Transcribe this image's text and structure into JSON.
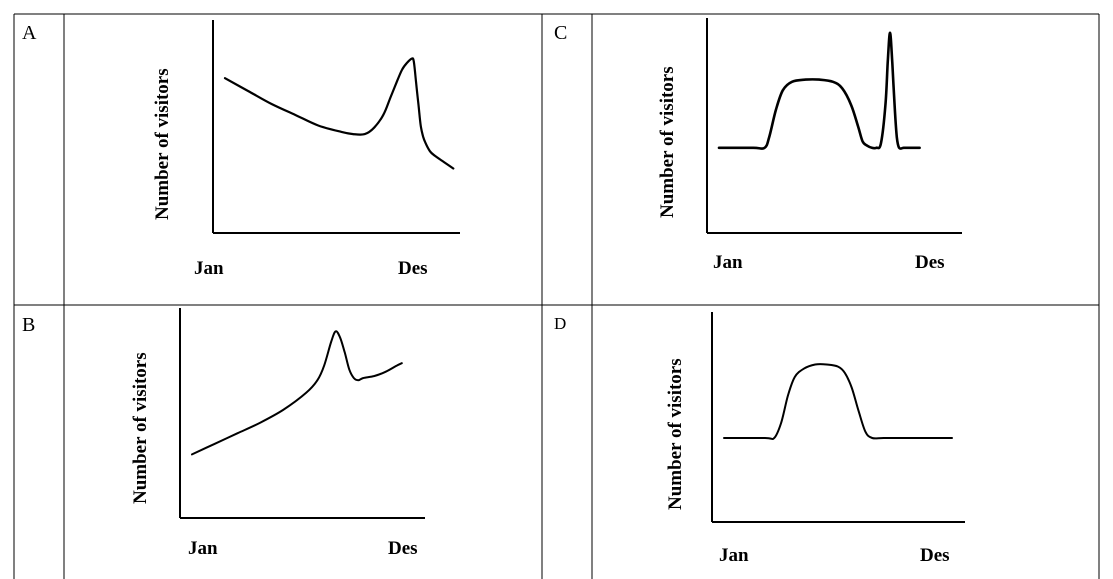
{
  "colors": {
    "line": "#000000",
    "border": "#000000"
  },
  "chart_data": [
    {
      "id": "A",
      "type": "line",
      "letter": "A",
      "ylabel": "Number of visitors",
      "x_ticks": [
        "Jan",
        "Des"
      ],
      "xlim": [
        0,
        100
      ],
      "ylim": [
        0,
        100
      ],
      "grid": false,
      "x": [
        0,
        10,
        20,
        30,
        40,
        50,
        55,
        60,
        64,
        68,
        71,
        74,
        76,
        78,
        80,
        81,
        82,
        83,
        84,
        85,
        86,
        88,
        90,
        94,
        98
      ],
      "y": [
        72,
        66,
        60,
        55,
        50,
        47,
        46,
        46,
        49,
        55,
        63,
        71,
        76,
        79,
        81,
        80,
        70,
        60,
        50,
        45,
        42,
        38,
        36,
        33,
        30
      ]
    },
    {
      "id": "C",
      "type": "line",
      "letter": "C",
      "ylabel": "Number of visitors",
      "x_ticks": [
        "Jan",
        "Des"
      ],
      "xlim": [
        0,
        100
      ],
      "ylim": [
        0,
        100
      ],
      "grid": false,
      "x": [
        0,
        15,
        20,
        22,
        25,
        28,
        32,
        38,
        44,
        50,
        54,
        58,
        61,
        63,
        65,
        67,
        69,
        71,
        73,
        74,
        75,
        76,
        77,
        78,
        79,
        81,
        83,
        88
      ],
      "y": [
        40,
        40,
        40,
        45,
        58,
        67,
        71,
        72,
        72,
        71,
        68,
        60,
        50,
        43,
        41,
        40,
        40,
        42,
        60,
        80,
        94,
        80,
        60,
        45,
        40,
        40,
        40,
        40
      ]
    },
    {
      "id": "B",
      "type": "line",
      "letter": "B",
      "ylabel": "Number of visitors",
      "x_ticks": [
        "Jan",
        "Des"
      ],
      "xlim": [
        0,
        100
      ],
      "ylim": [
        0,
        100
      ],
      "grid": false,
      "x": [
        0,
        10,
        20,
        30,
        40,
        50,
        55,
        58,
        61,
        63,
        65,
        67,
        69,
        71,
        73,
        75,
        80,
        85,
        90,
        92
      ],
      "y": [
        30,
        35,
        40,
        45,
        51,
        59,
        65,
        72,
        83,
        88,
        85,
        78,
        70,
        66,
        65,
        66,
        67,
        69,
        72,
        73
      ]
    },
    {
      "id": "D",
      "type": "line",
      "letter": "D",
      "ylabel": "Number of visitors",
      "x_ticks": [
        "Jan",
        "Des"
      ],
      "xlim": [
        0,
        100
      ],
      "ylim": [
        0,
        100
      ],
      "grid": false,
      "x": [
        0,
        18,
        22,
        25,
        28,
        31,
        35,
        40,
        45,
        50,
        53,
        56,
        59,
        62,
        65,
        70,
        80,
        90,
        100
      ],
      "y": [
        40,
        40,
        40,
        47,
        60,
        69,
        73,
        75,
        75,
        74,
        71,
        64,
        53,
        43,
        40,
        40,
        40,
        40,
        40
      ]
    }
  ]
}
